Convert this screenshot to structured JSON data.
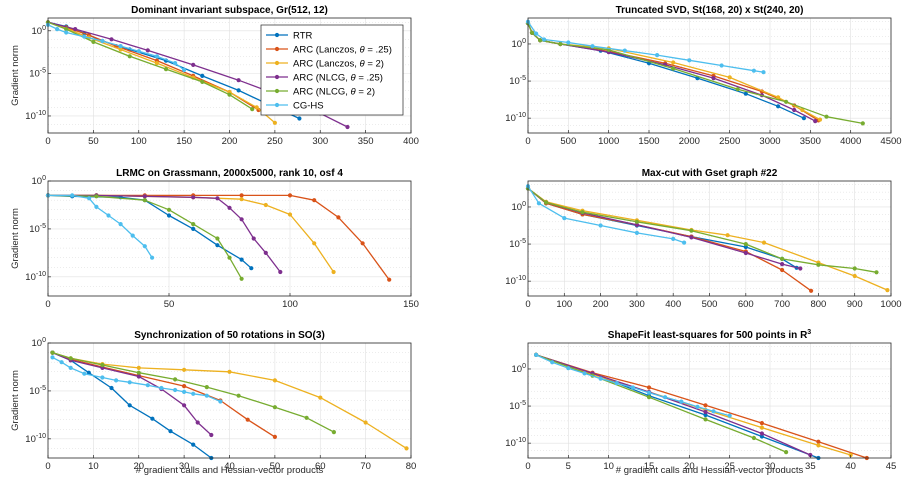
{
  "colors": {
    "RTR": "#0072BD",
    "ARC (Lanczos, θ = .25)": "#D95319",
    "ARC (Lanczos, θ = 2)": "#EDB120",
    "ARC (NLCG, θ = .25)": "#7E2F8E",
    "ARC (NLCG, θ = 2)": "#77AC30",
    "CG-HS": "#4DBEEE"
  },
  "legend": {
    "items": [
      {
        "name": "RTR",
        "pre": "RTR",
        "theta": "",
        "post": ""
      },
      {
        "name": "ARC (Lanczos, θ = .25)",
        "pre": "ARC (Lanczos, ",
        "theta": "θ",
        "post": " = .25)"
      },
      {
        "name": "ARC (Lanczos, θ = 2)",
        "pre": "ARC (Lanczos, ",
        "theta": "θ",
        "post": " = 2)"
      },
      {
        "name": "ARC (NLCG, θ = .25)",
        "pre": "ARC (NLCG, ",
        "theta": "θ",
        "post": " = .25)"
      },
      {
        "name": "ARC (NLCG, θ = 2)",
        "pre": "ARC (NLCG, ",
        "theta": "θ",
        "post": " = 2)"
      },
      {
        "name": "CG-HS",
        "pre": "CG-HS",
        "theta": "",
        "post": ""
      }
    ]
  },
  "chart_data": [
    {
      "type": "line",
      "title": "Dominant invariant subspace, Gr(512, 12)",
      "xlabel": "",
      "ylabel": "Gradient norm",
      "xlim": [
        0,
        400
      ],
      "xticks": [
        0,
        50,
        100,
        150,
        200,
        250,
        300,
        350,
        400
      ],
      "ylim_log10": [
        -12,
        1.5
      ],
      "yticks_exp": [
        0,
        -5,
        -10
      ],
      "yscale": "log",
      "grid": true,
      "legend": "top-right",
      "series": [
        {
          "name": "RTR",
          "x": [
            0,
            20,
            40,
            60,
            90,
            130,
            170,
            210,
            240,
            277
          ],
          "y_log10": [
            1,
            0.5,
            -0.3,
            -1.2,
            -2.2,
            -3.5,
            -5.3,
            -7,
            -8.5,
            -10.3
          ]
        },
        {
          "name": "ARC (Lanczos, θ = .25)",
          "x": [
            0,
            20,
            45,
            75,
            120,
            160,
            200,
            232
          ],
          "y_log10": [
            1,
            0.4,
            -0.5,
            -1.8,
            -3.5,
            -5.3,
            -7.2,
            -9.3
          ]
        },
        {
          "name": "ARC (Lanczos, θ = 2)",
          "x": [
            0,
            20,
            45,
            80,
            120,
            160,
            200,
            230,
            250
          ],
          "y_log10": [
            1,
            0.3,
            -0.8,
            -2.2,
            -3.8,
            -5.5,
            -7.2,
            -9,
            -10.8
          ]
        },
        {
          "name": "ARC (NLCG, θ = .25)",
          "x": [
            0,
            30,
            70,
            110,
            160,
            210,
            260,
            300,
            330
          ],
          "y_log10": [
            1,
            0.2,
            -1,
            -2.3,
            -4,
            -5.8,
            -7.8,
            -9.7,
            -11.3
          ]
        },
        {
          "name": "ARC (NLCG, θ = 2)",
          "x": [
            0,
            20,
            50,
            90,
            130,
            170,
            200,
            225
          ],
          "y_log10": [
            1,
            0.2,
            -1.3,
            -3,
            -4.5,
            -6,
            -7.5,
            -9.2
          ]
        },
        {
          "name": "CG-HS",
          "x": [
            0,
            10,
            20,
            40,
            60,
            80,
            100,
            120,
            140,
            150
          ],
          "y_log10": [
            0.7,
            0.2,
            -0.2,
            -0.7,
            -1.2,
            -1.8,
            -2.4,
            -3,
            -3.8,
            -4.6
          ]
        }
      ]
    },
    {
      "type": "line",
      "title": "Truncated SVD, St(168, 20) x St(240, 20)",
      "xlabel": "",
      "ylabel": "",
      "xlim": [
        0,
        4500
      ],
      "xticks": [
        0,
        500,
        1000,
        1500,
        2000,
        2500,
        3000,
        3500,
        4000,
        4500
      ],
      "ylim_log10": [
        -12,
        3.5
      ],
      "yticks_exp": [
        0,
        -5,
        -10
      ],
      "yscale": "log",
      "grid": true,
      "series": [
        {
          "name": "RTR",
          "x": [
            0,
            50,
            150,
            400,
            900,
            1500,
            2100,
            2700,
            3100,
            3420
          ],
          "y_log10": [
            2.8,
            1.5,
            0.5,
            0,
            -0.9,
            -2.6,
            -4.6,
            -6.7,
            -8.4,
            -10
          ]
        },
        {
          "name": "ARC (Lanczos, θ = .25)",
          "x": [
            0,
            50,
            150,
            400,
            1000,
            1700,
            2300,
            2900,
            3300,
            3600
          ],
          "y_log10": [
            2.8,
            1.5,
            0.5,
            0,
            -1,
            -2.6,
            -4.3,
            -6.4,
            -8.3,
            -10.3
          ]
        },
        {
          "name": "ARC (Lanczos, θ = 2)",
          "x": [
            0,
            50,
            150,
            400,
            1000,
            1800,
            2500,
            3100,
            3400,
            3620
          ],
          "y_log10": [
            2.8,
            1.5,
            0.5,
            0,
            -0.6,
            -2.5,
            -4.5,
            -7.2,
            -8.9,
            -10.2
          ]
        },
        {
          "name": "ARC (NLCG, θ = .25)",
          "x": [
            0,
            50,
            150,
            400,
            1000,
            1700,
            2300,
            2900,
            3300,
            3560
          ],
          "y_log10": [
            2.8,
            1.5,
            0.5,
            0,
            -1.1,
            -2.8,
            -4.6,
            -6.9,
            -8.9,
            -10.4
          ]
        },
        {
          "name": "ARC (NLCG, θ = 2)",
          "x": [
            0,
            50,
            150,
            400,
            1000,
            1800,
            2600,
            3200,
            3700,
            4150
          ],
          "y_log10": [
            2.8,
            1.5,
            0.5,
            0,
            -0.8,
            -3.3,
            -6.1,
            -7.8,
            -9.8,
            -10.7
          ]
        },
        {
          "name": "CG-HS",
          "x": [
            0,
            100,
            200,
            500,
            800,
            1200,
            1600,
            2000,
            2400,
            2800,
            2920
          ],
          "y_log10": [
            3,
            1.4,
            0.6,
            0.2,
            -0.3,
            -0.9,
            -1.5,
            -2.2,
            -2.9,
            -3.6,
            -3.8
          ]
        }
      ]
    },
    {
      "type": "line",
      "title": "LRMC on Grassmann, 2000x5000, rank 10, osf 4",
      "xlabel": "",
      "ylabel": "Gradient norm",
      "xlim": [
        0,
        150
      ],
      "xticks": [
        0,
        50,
        100,
        150
      ],
      "ylim_log10": [
        -12,
        0
      ],
      "yticks_exp": [
        0,
        -5,
        -10
      ],
      "yscale": "log",
      "grid": true,
      "series": [
        {
          "name": "RTR",
          "x": [
            0,
            10,
            30,
            40,
            50,
            60,
            70,
            80,
            84
          ],
          "y_log10": [
            -1.5,
            -1.6,
            -1.7,
            -2,
            -3.6,
            -5,
            -6.7,
            -8.2,
            -9.1
          ]
        },
        {
          "name": "ARC (Lanczos, θ = .25)",
          "x": [
            0,
            20,
            40,
            60,
            80,
            100,
            110,
            120,
            130,
            141
          ],
          "y_log10": [
            -1.5,
            -1.5,
            -1.5,
            -1.5,
            -1.5,
            -1.5,
            -2,
            -3.8,
            -6.5,
            -10.3
          ]
        },
        {
          "name": "ARC (Lanczos, θ = 2)",
          "x": [
            0,
            20,
            40,
            60,
            80,
            90,
            100,
            110,
            118
          ],
          "y_log10": [
            -1.5,
            -1.5,
            -1.6,
            -1.7,
            -1.9,
            -2.5,
            -3.5,
            -6.5,
            -9.5
          ]
        },
        {
          "name": "ARC (NLCG, θ = .25)",
          "x": [
            0,
            20,
            40,
            60,
            70,
            75,
            80,
            85,
            90,
            96
          ],
          "y_log10": [
            -1.5,
            -1.5,
            -1.6,
            -1.7,
            -1.8,
            -2.8,
            -4,
            -6,
            -7.5,
            -9.5
          ]
        },
        {
          "name": "ARC (NLCG, θ = 2)",
          "x": [
            0,
            20,
            40,
            50,
            60,
            70,
            75,
            80
          ],
          "y_log10": [
            -1.5,
            -1.6,
            -2,
            -3,
            -4.5,
            -6,
            -8,
            -10.2
          ]
        },
        {
          "name": "CG-HS",
          "x": [
            0,
            10,
            17,
            20,
            25,
            30,
            35,
            40,
            43
          ],
          "y_log10": [
            -1.5,
            -1.5,
            -1.8,
            -2.7,
            -3.6,
            -4.5,
            -5.7,
            -6.8,
            -8
          ]
        }
      ]
    },
    {
      "type": "line",
      "title": "Max-cut with Gset graph #22",
      "xlabel": "",
      "ylabel": "",
      "xlim": [
        0,
        1000
      ],
      "xticks": [
        0,
        100,
        200,
        300,
        400,
        500,
        600,
        700,
        800,
        900,
        1000
      ],
      "ylim_log10": [
        -12,
        3.5
      ],
      "yticks_exp": [
        0,
        -5,
        -10
      ],
      "yscale": "log",
      "grid": true,
      "series": [
        {
          "name": "RTR",
          "x": [
            0,
            50,
            150,
            300,
            450,
            600,
            700,
            740
          ],
          "y_log10": [
            2.5,
            0.5,
            -1,
            -2.5,
            -4,
            -5.4,
            -7,
            -8.2
          ]
        },
        {
          "name": "ARC (Lanczos, θ = .25)",
          "x": [
            0,
            50,
            150,
            300,
            450,
            600,
            700,
            780
          ],
          "y_log10": [
            2.5,
            0.5,
            -1,
            -2.4,
            -4,
            -6,
            -8.5,
            -11.3
          ]
        },
        {
          "name": "ARC (Lanczos, θ = 2)",
          "x": [
            0,
            50,
            150,
            300,
            450,
            550,
            650,
            800,
            900,
            990
          ],
          "y_log10": [
            2.5,
            0.7,
            -0.5,
            -1.8,
            -3.1,
            -3.8,
            -4.8,
            -7.5,
            -9.3,
            -11.2
          ]
        },
        {
          "name": "ARC (NLCG, θ = .25)",
          "x": [
            0,
            50,
            150,
            300,
            450,
            600,
            700,
            750
          ],
          "y_log10": [
            2.5,
            0.6,
            -0.8,
            -2.4,
            -4.1,
            -6.2,
            -7.7,
            -8.3
          ]
        },
        {
          "name": "ARC (NLCG, θ = 2)",
          "x": [
            0,
            50,
            150,
            300,
            450,
            600,
            700,
            800,
            900,
            960
          ],
          "y_log10": [
            2.5,
            0.6,
            -0.7,
            -2,
            -3.2,
            -5,
            -7,
            -7.8,
            -8.3,
            -8.8
          ]
        },
        {
          "name": "CG-HS",
          "x": [
            0,
            30,
            100,
            200,
            300,
            400,
            430
          ],
          "y_log10": [
            2.8,
            0.5,
            -1.5,
            -2.5,
            -3.5,
            -4.3,
            -4.8
          ]
        }
      ]
    },
    {
      "type": "line",
      "title": "Synchronization of 50 rotations in SO(3)",
      "xlabel": "# gradient calls and Hessian-vector products",
      "ylabel": "Gradient norm",
      "xlim": [
        0,
        80
      ],
      "xticks": [
        0,
        10,
        20,
        30,
        40,
        50,
        60,
        70,
        80
      ],
      "ylim_log10": [
        -12,
        0
      ],
      "yticks_exp": [
        0,
        -5,
        -10
      ],
      "yscale": "log",
      "grid": true,
      "series": [
        {
          "name": "RTR",
          "x": [
            1,
            5,
            9,
            14,
            18,
            23,
            27,
            32,
            36
          ],
          "y_log10": [
            -1,
            -1.8,
            -3.1,
            -4.7,
            -6.5,
            -7.9,
            -9.2,
            -10.6,
            -12
          ]
        },
        {
          "name": "ARC (Lanczos, θ = .25)",
          "x": [
            1,
            5,
            12,
            20,
            30,
            38,
            44,
            50
          ],
          "y_log10": [
            -1,
            -1.7,
            -2.5,
            -3.4,
            -4.5,
            -6,
            -8,
            -9.8
          ]
        },
        {
          "name": "ARC (Lanczos, θ = 2)",
          "x": [
            1,
            5,
            12,
            20,
            30,
            40,
            50,
            60,
            70,
            79
          ],
          "y_log10": [
            -1,
            -1.6,
            -2.2,
            -2.6,
            -2.8,
            -3,
            -3.9,
            -5.7,
            -8.3,
            -11
          ]
        },
        {
          "name": "ARC (NLCG, θ = .25)",
          "x": [
            1,
            5,
            12,
            20,
            25,
            30,
            33,
            36
          ],
          "y_log10": [
            -1,
            -1.8,
            -2.6,
            -3.5,
            -4.8,
            -6.5,
            -8.3,
            -9.6
          ]
        },
        {
          "name": "ARC (NLCG, θ = 2)",
          "x": [
            1,
            5,
            12,
            20,
            28,
            35,
            42,
            50,
            57,
            63
          ],
          "y_log10": [
            -1,
            -1.6,
            -2.3,
            -3.1,
            -3.8,
            -4.6,
            -5.5,
            -6.7,
            -7.8,
            -9.3
          ]
        },
        {
          "name": "CG-HS",
          "x": [
            1,
            3,
            5,
            8,
            12,
            15,
            18,
            22,
            25,
            28,
            30,
            32,
            35,
            38
          ],
          "y_log10": [
            -1.5,
            -2,
            -2.6,
            -3.2,
            -3.6,
            -3.9,
            -4.1,
            -4.4,
            -4.7,
            -4.9,
            -5.1,
            -5.3,
            -5.5,
            -6.1
          ]
        }
      ]
    },
    {
      "type": "line",
      "title": "ShapeFit least-squares for 500 points in R",
      "title_sup": "3",
      "xlabel": "# gradient calls and Hessian-vector products",
      "ylabel": "",
      "xlim": [
        0,
        45
      ],
      "xticks": [
        0,
        5,
        10,
        15,
        20,
        25,
        30,
        35,
        40,
        45
      ],
      "ylim_log10": [
        -12,
        3.5
      ],
      "yticks_exp": [
        0,
        -5,
        -10
      ],
      "yscale": "log",
      "grid": true,
      "series": [
        {
          "name": "RTR",
          "x": [
            1,
            8,
            15,
            22,
            29,
            36
          ],
          "y_log10": [
            1.9,
            -0.6,
            -3.6,
            -6.2,
            -9.1,
            -12
          ]
        },
        {
          "name": "ARC (Lanczos, θ = .25)",
          "x": [
            1,
            8,
            15,
            22,
            29,
            36,
            42
          ],
          "y_log10": [
            1.9,
            -0.5,
            -2.5,
            -4.9,
            -7.3,
            -9.8,
            -12
          ]
        },
        {
          "name": "ARC (Lanczos, θ = 2)",
          "x": [
            1,
            8,
            15,
            22,
            29,
            36,
            40
          ],
          "y_log10": [
            1.9,
            -0.7,
            -3.1,
            -5.5,
            -7.9,
            -10.3,
            -11.6
          ]
        },
        {
          "name": "ARC (NLCG, θ = .25)",
          "x": [
            1,
            8,
            15,
            22,
            29,
            35
          ],
          "y_log10": [
            1.9,
            -0.6,
            -3.1,
            -5.8,
            -8.7,
            -11.6
          ]
        },
        {
          "name": "ARC (NLCG, θ = 2)",
          "x": [
            1,
            8,
            15,
            22,
            28,
            32
          ],
          "y_log10": [
            1.9,
            -0.9,
            -3.8,
            -6.8,
            -9.3,
            -11.2
          ]
        },
        {
          "name": "CG-HS",
          "x": [
            1,
            3,
            5,
            7,
            9,
            11,
            13,
            15,
            17,
            19,
            21,
            23,
            25
          ],
          "y_log10": [
            1.9,
            0.9,
            0.1,
            -0.6,
            -1.3,
            -1.9,
            -2.5,
            -3.2,
            -3.8,
            -4.4,
            -5.1,
            -5.7,
            -6.3
          ]
        }
      ]
    }
  ]
}
